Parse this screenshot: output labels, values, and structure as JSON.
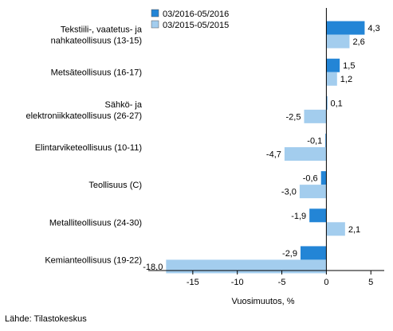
{
  "chart_data": {
    "type": "bar",
    "orientation": "horizontal",
    "categories": [
      [
        "Tekstiili-, vaatetus- ja",
        "nahkateollisuus (13-15)"
      ],
      [
        "Metsäteollisuus (16-17)"
      ],
      [
        "Sähkö- ja",
        "elektroniikkateollisuus (26-27)"
      ],
      [
        "Elintarviketeollisuus (10-11)"
      ],
      [
        "Teollisuus (C)"
      ],
      [
        "Metalliteollisuus (24-30)"
      ],
      [
        "Kemianteollisuus (19-22)"
      ]
    ],
    "series": [
      {
        "name": "03/2016-05/2016",
        "color": "#2385d6",
        "values": [
          4.3,
          1.5,
          0.1,
          -0.1,
          -0.6,
          -1.9,
          -2.9
        ],
        "labels": [
          "4,3",
          "1,5",
          "0,1",
          "-0,1",
          "-0,6",
          "-1,9",
          "-2,9"
        ]
      },
      {
        "name": "03/2015-05/2015",
        "color": "#a3cdee",
        "values": [
          2.6,
          1.2,
          -2.5,
          -4.7,
          -3.0,
          2.1,
          -18.0
        ],
        "labels": [
          "2,6",
          "1,2",
          "-2,5",
          "-4,7",
          "-3,0",
          "2,1",
          "-18,0"
        ]
      }
    ],
    "xlim": [
      -20,
      6.5
    ],
    "xticks": [
      -15,
      -10,
      -5,
      0,
      5
    ],
    "xtick_labels": [
      "-15",
      "-10",
      "-5",
      "0",
      "5"
    ],
    "xlabel": "Vuosimuutos, %",
    "legend_position": "top-left",
    "grid": false
  },
  "source_text": "Lähde: Tilastokeskus"
}
